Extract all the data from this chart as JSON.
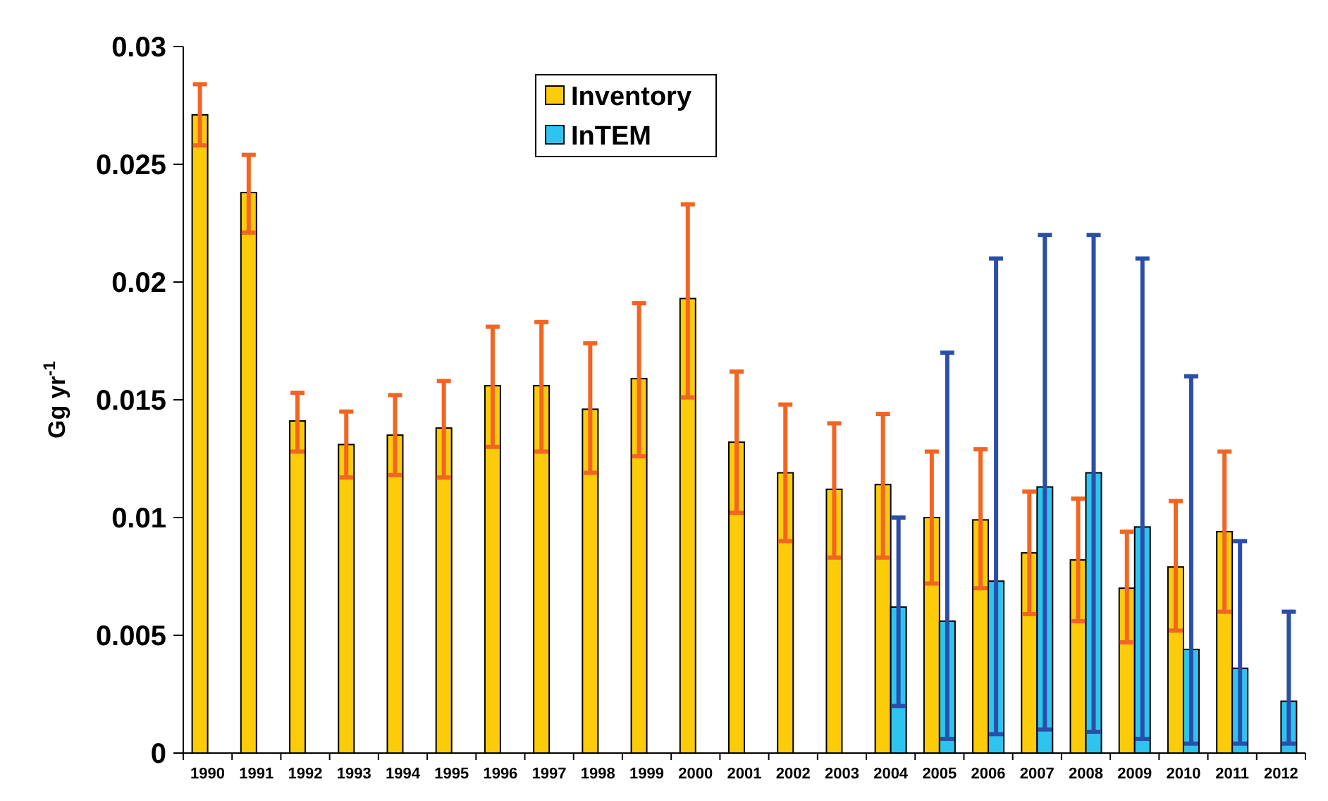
{
  "chart_data": {
    "type": "bar",
    "ylabel": "Gg yr$^{-1}$",
    "categories": [
      "1990",
      "1991",
      "1992",
      "1993",
      "1994",
      "1995",
      "1996",
      "1997",
      "1998",
      "1999",
      "2000",
      "2001",
      "2002",
      "2003",
      "2004",
      "2005",
      "2006",
      "2007",
      "2008",
      "2009",
      "2010",
      "2011",
      "2012"
    ],
    "series": [
      {
        "name": "Inventory",
        "color": "#fccc0a",
        "values": [
          0.0271,
          0.0238,
          0.0141,
          0.0131,
          0.0135,
          0.0138,
          0.0156,
          0.0156,
          0.0146,
          0.0159,
          0.0193,
          0.0132,
          0.0119,
          0.0112,
          0.0114,
          0.01,
          0.0099,
          0.0085,
          0.0082,
          0.007,
          0.0079,
          0.0094,
          null
        ],
        "errors": [
          [
            0.0258,
            0.0284
          ],
          [
            0.0221,
            0.0254
          ],
          [
            0.0128,
            0.0153
          ],
          [
            0.0117,
            0.0145
          ],
          [
            0.0118,
            0.0152
          ],
          [
            0.0117,
            0.0158
          ],
          [
            0.013,
            0.0181
          ],
          [
            0.0128,
            0.0183
          ],
          [
            0.0119,
            0.0174
          ],
          [
            0.0126,
            0.0191
          ],
          [
            0.0151,
            0.0233
          ],
          [
            0.0102,
            0.0162
          ],
          [
            0.009,
            0.0148
          ],
          [
            0.0083,
            0.014
          ],
          [
            0.0083,
            0.0144
          ],
          [
            0.0072,
            0.0128
          ],
          [
            0.007,
            0.0129
          ],
          [
            0.0059,
            0.0111
          ],
          [
            0.0056,
            0.0108
          ],
          [
            0.0047,
            0.0094
          ],
          [
            0.0052,
            0.0107
          ],
          [
            0.006,
            0.0128
          ],
          null
        ]
      },
      {
        "name": "InTEM",
        "color": "#2ec4f0",
        "values": [
          null,
          null,
          null,
          null,
          null,
          null,
          null,
          null,
          null,
          null,
          null,
          null,
          null,
          null,
          0.0062,
          0.0056,
          0.0073,
          0.0113,
          0.0119,
          0.0096,
          0.0044,
          0.0036,
          0.0022
        ],
        "errors": [
          null,
          null,
          null,
          null,
          null,
          null,
          null,
          null,
          null,
          null,
          null,
          null,
          null,
          null,
          [
            0.002,
            0.01
          ],
          [
            0.0006,
            0.017
          ],
          [
            0.0008,
            0.021
          ],
          [
            0.001,
            0.022
          ],
          [
            0.0009,
            0.022
          ],
          [
            0.0006,
            0.021
          ],
          [
            0.0004,
            0.016
          ],
          [
            0.0004,
            0.009
          ],
          [
            0.0004,
            0.006
          ]
        ]
      }
    ],
    "ylim": [
      0,
      0.03
    ],
    "yticks": [
      0,
      0.005,
      0.01,
      0.015,
      0.02,
      0.025,
      0.03
    ],
    "legend": "top"
  }
}
